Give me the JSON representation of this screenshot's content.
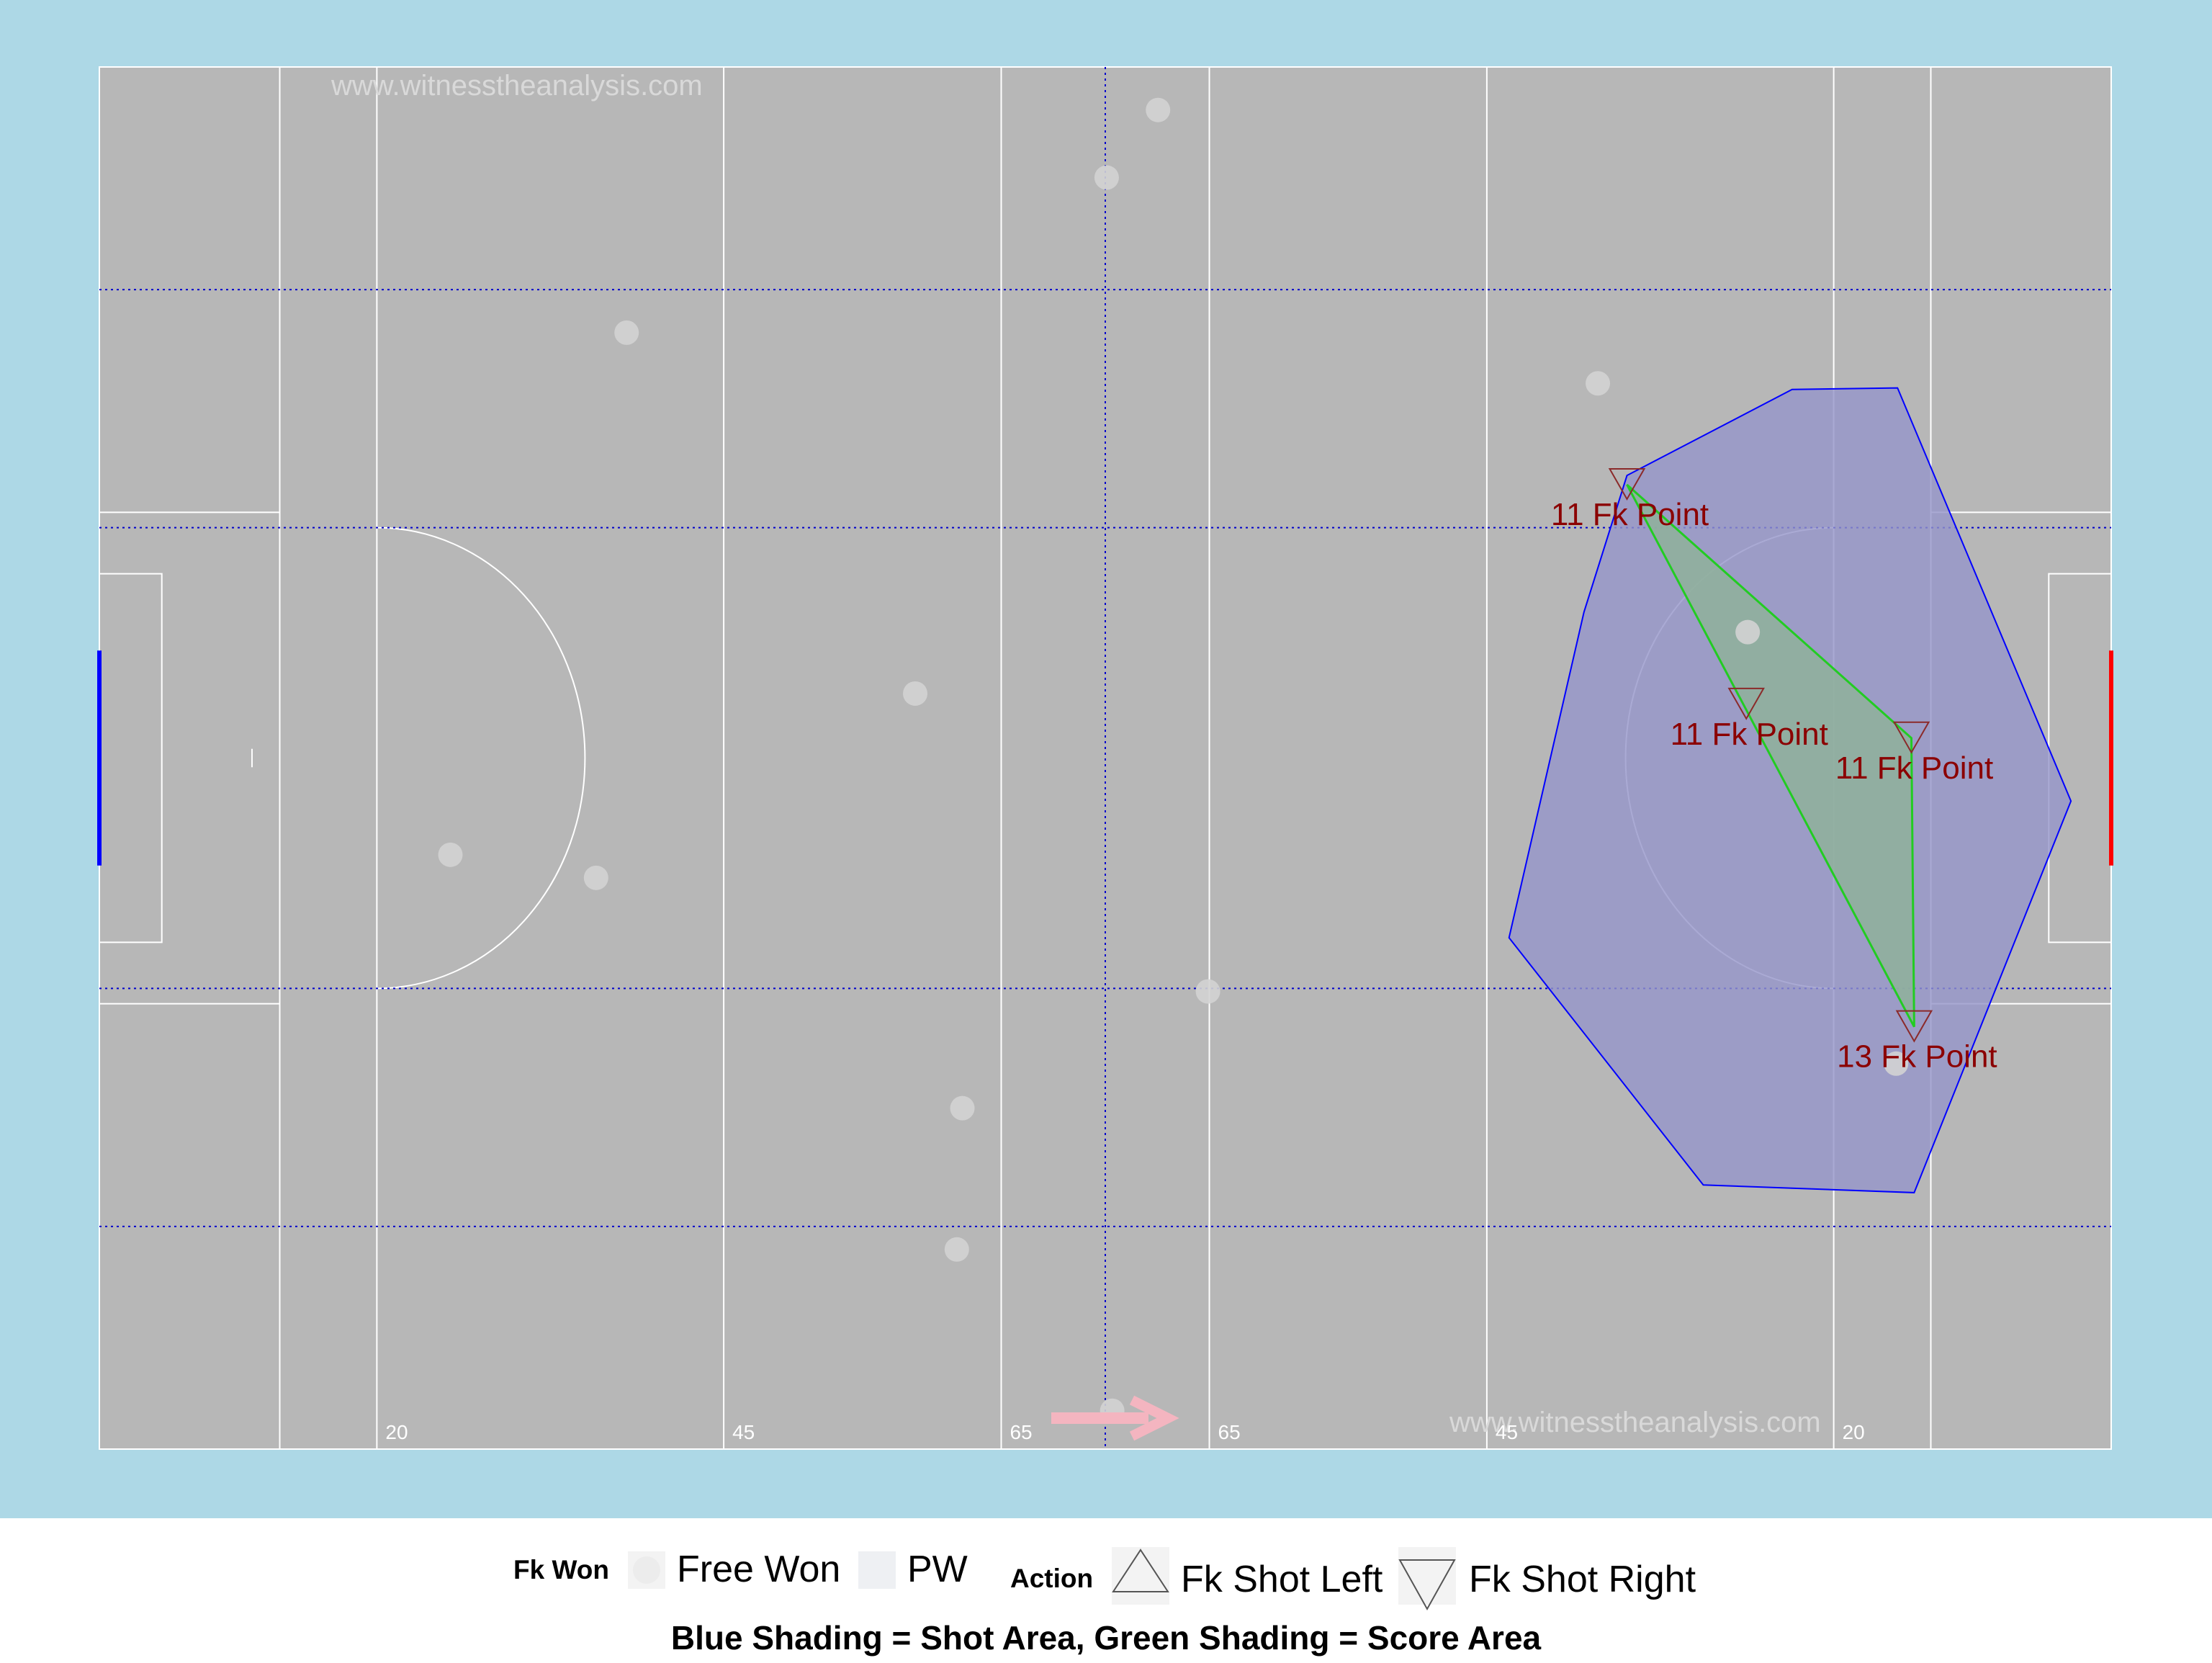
{
  "watermark": "www.witnesstheanalysis.com",
  "colors": {
    "background": "#add8e6",
    "pitch": "#b7b7b7",
    "lines": "#ffffff",
    "thirds": "#0000cc",
    "shot_area_fill": "#9595c9",
    "shot_area_stroke": "#0000ff",
    "score_area_fill": "#8fb29a",
    "score_area_stroke": "#22cc22",
    "label": "#8b0000",
    "free_won": "#d3d3d3",
    "arrow": "#f4b5c0",
    "left_goal": "#0000ff",
    "right_goal": "#ff0000"
  },
  "chart_data": {
    "type": "scatter",
    "title": "",
    "pitch": {
      "x_range": [
        0,
        145
      ],
      "y_range": [
        0,
        90
      ],
      "line_labels": [
        "20",
        "45",
        "65",
        "65",
        "45",
        "20"
      ]
    },
    "free_won": [
      [
        76.3,
        87.2
      ],
      [
        72.6,
        82.8
      ],
      [
        38.0,
        72.7
      ],
      [
        108.0,
        69.4
      ],
      [
        118.8,
        53.2
      ],
      [
        58.8,
        49.2
      ],
      [
        25.3,
        38.7
      ],
      [
        35.8,
        37.2
      ],
      [
        79.9,
        29.8
      ],
      [
        62.2,
        22.2
      ],
      [
        61.8,
        13.0
      ],
      [
        73.0,
        2.5
      ],
      [
        129.5,
        25.1
      ]
    ],
    "shots": [
      {
        "x": 110.1,
        "y": 62.8,
        "label": "11 Fk Point",
        "action": "Fk Shot Right"
      },
      {
        "x": 118.7,
        "y": 48.5,
        "label": "11 Fk Point",
        "action": "Fk Shot Right"
      },
      {
        "x": 130.6,
        "y": 46.3,
        "label": "11 Fk Point",
        "action": "Fk Shot Right"
      },
      {
        "x": 130.8,
        "y": 27.5,
        "label": "13 Fk Point",
        "action": "Fk Shot Right"
      }
    ],
    "shot_area": [
      [
        122.0,
        69.0
      ],
      [
        129.6,
        69.1
      ],
      [
        142.1,
        42.2
      ],
      [
        130.8,
        16.7
      ],
      [
        115.6,
        17.2
      ],
      [
        101.6,
        33.3
      ],
      [
        107.0,
        54.5
      ],
      [
        110.1,
        63.4
      ],
      [
        122.0,
        69.0
      ]
    ],
    "score_area": [
      [
        110.1,
        62.8
      ],
      [
        130.6,
        46.3
      ],
      [
        130.8,
        27.5
      ],
      [
        110.1,
        62.8
      ]
    ]
  },
  "legend": {
    "fk_won_title": "Fk Won",
    "free_won_label": "Free Won",
    "pw_label": "PW",
    "action_title": "Action",
    "shot_left_label": "Fk Shot Left",
    "shot_right_label": "Fk Shot Right",
    "caption": "Blue Shading = Shot Area, Green Shading = Score Area"
  }
}
